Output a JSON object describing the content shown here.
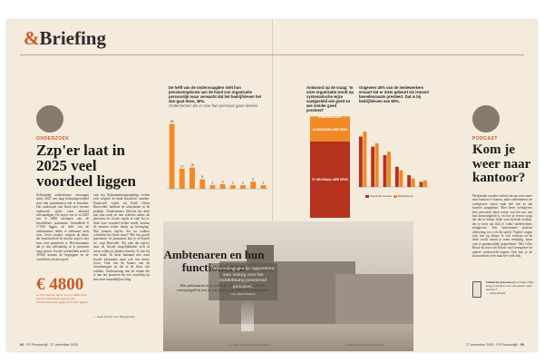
{
  "header": {
    "amp": "&",
    "title": "Briefing"
  },
  "left_article": {
    "kicker": "ONDERZOEK",
    "headline": "Zzp'er laat in 2025 veel voordeel liggen",
    "body_col1": "Zelfstandig ondernemers ontvangen sinds 2025 een laag belastingvoordeel door hun jaarinkomen niet te benutten. Dat onderzoek van Knab met recente onderzoek onder ruim duizend zelfstandigen. De zzp'er ziet er in 2025 een € 4800 mislopen aan de beschikbare jaarruimte. Gemiddeld € 17.000 liggen, de helft van de ondernemers denkt er helemaal niets over. Geen wonder, volgens de bank: dat bonnisscheid de meeste zzp'ers niet eens over jaarruimte is. Het maximum dat je dus zelfstandig in je pensioen mag storten. Goede voorbeelden zoals € 39.000 kennen de begrippen en de voordelen ook niet goed.",
    "big_number": "€ 4800",
    "big_number_caption": "is 2025 laat de zzp'er nu te 4 4800 netto van de belastingteruggave aan pensioenstorting liggen €13.3000 liggen",
    "body_col2": "ook een bijbestemmingsregeling voelen zich volgens de bank financieel onzeker. Financieel expert bij Knab Oskar Buesvelkie hartkent de uitkomsten in de praktijk. 'Ondernemers beloven het druk met hun werk en dan schieten zaken als pensioen en fiscale regels er snel bij in. Stuk voor voordeel helder wordt, kennen de mensen echter dienst op bewuging.' Wat kennen zzp'ers die nu wakker schrikken het beste doen? 'Het een goede jaarruimte. Je jaarruimte kan je al herstel en', zegt Buesvelk. Wij zien dat zzp'ers naar de fiscale mogelijkheden zich al veren willen in oktober kennen. Te late bij een bank. 'Ik kiest inmaand niet waar fiscale informatie maar ook een nieuw risico. Ook van de kennis van de verzekeringen en die in de basis ook wekken. Onderneming met de ruimte die je aan het pensioen bij een voordelig op een vaste maandelijkse inleg.'",
    "signature": "— Anna Koster van Wijngaarden"
  },
  "center_chart_left": {
    "title": "De helft van de ondervraagden stelt hun pensioenopbouw aan de hand van organisatie persoonlijk maar verwacht dat het bedrijfsleven het dan gaat doen, 36%.",
    "subtitle": "Ondernemers die er over hun pensioen gaan denken"
  },
  "center_chart_mid": {
    "title": "Antwoord op de vraag: 'In onze organisatie wordt op systematische wijze vastgesteld wie goed en wie minder goed presteert'",
    "seg_top": "1 MISVERSTAAT",
    "seg_mid": "18 ENIGSZINS MEE EENS",
    "seg_bottom": "57 HELEMAAL MEE EENS"
  },
  "center_chart_right": {
    "title": "Ongeveer 40% van de medewerkers ervaart dat er niets gebeurt als iemand benedenmaats presteert. Dat is bij bedrijfsleven een 80%.",
    "legend_a": "Openbaar bestuur",
    "legend_b": "Bedrijfsleven"
  },
  "feature": {
    "headline": "Ambtenaren en hun functioneren",
    "subtitle": "Wat ambtenaren in de publieke sector van elkaar vinden, weerspiegeld in een recent onderzoek onder 900 ambtenaren.",
    "quote": "Verhoudingsgewijs rapporteren men weinig over het middelmatig presterend personeel.",
    "quote_attr": "Cees Ruud Huiberts"
  },
  "right_article": {
    "kicker": "PODCAST",
    "headline": "Kom je weer naar kantoor?",
    "body": "Werkenden worden verleid om om weer meer naar kantoor te komen, maar ondernemers en werkgevers weten vaak niet hoe ze dat moeten aanpakken. 'Hoe beter werkgevers hun personeel laten weten wat het nut van hun aanwezigheid is, en hoe je ervoor zorgt dat dat in balans blijft voor hybride werken, des te meer zal Ook je 'echte' medewerkers terugkeren. Een interessante podcast aflevering voor wie dit speelt. 'Nadert vragen echt niet op elkaar. Je wilt welkom en de druk wordt vanuit je team eenzijdig, maar ook in gezamenlijke gesprekken.' Met Colin Bosse en Joost ten Bosch van Greenpeace en andere werkwereld experts Ook hoe je de thuiswerkers weer naar het werk lokt.",
    "sidenote_title": "Geluid uit je kwam",
    "sidenote_body": "afleveringen 'Hoe krijg je mensen weer met plezier naar kantoor?'",
    "sidenote_sig": "— Julia Dronez"
  },
  "footer": {
    "left_page": "94",
    "left_label": "FD Persoonlijk",
    "left_date": "27 december 2025",
    "right_page": "95",
    "right_label": "FD Persoonlijk",
    "right_date": "27 december 2025",
    "credit_left": "© 2025 Het Financieele Dagblad",
    "credit_right": "© 2025 Het Financieele Dagblad"
  },
  "colors": {
    "accent": "#c85a2b",
    "bar_dark": "#b5321f",
    "bar_light": "#f08a24",
    "paper": "#f4ebdd"
  },
  "chart_data": [
    {
      "type": "bar",
      "title": "De helft van de ondervraagden stelt hun pensioenopbouw aan de hand van organisatie persoonlijk maar verwacht dat het bedrijfsleven het dan gaat doen, 36%.",
      "values": [
        55,
        17,
        18,
        8,
        3,
        4,
        3,
        3,
        6,
        3
      ],
      "labels": [
        "55",
        "17",
        "18",
        "8",
        "3",
        "4",
        "3",
        "3",
        "6",
        "3"
      ],
      "ylim": [
        0,
        60
      ]
    },
    {
      "type": "bar",
      "title": "Antwoord op de vraag: 'In onze organisatie wordt op systematische wijze vastgesteld wie goed en wie minder goed presteert'",
      "stacked": true,
      "categories": [
        "Helemaal mee eens",
        "Enigszins mee eens",
        "Misverstaat"
      ],
      "values": [
        57,
        18,
        1
      ],
      "ylim": [
        0,
        100
      ]
    },
    {
      "type": "bar",
      "title": "Ongeveer 40% van de medewerkers ervaart dat er niets gebeurt als iemand benedenmaats presteert.",
      "series": [
        {
          "name": "Openbaar bestuur",
          "values": [
            30,
            24,
            19,
            12,
            7,
            3
          ]
        },
        {
          "name": "Bedrijfsleven",
          "values": [
            33,
            26,
            21,
            10,
            5,
            4
          ]
        }
      ],
      "ylim": [
        0,
        40
      ]
    }
  ]
}
